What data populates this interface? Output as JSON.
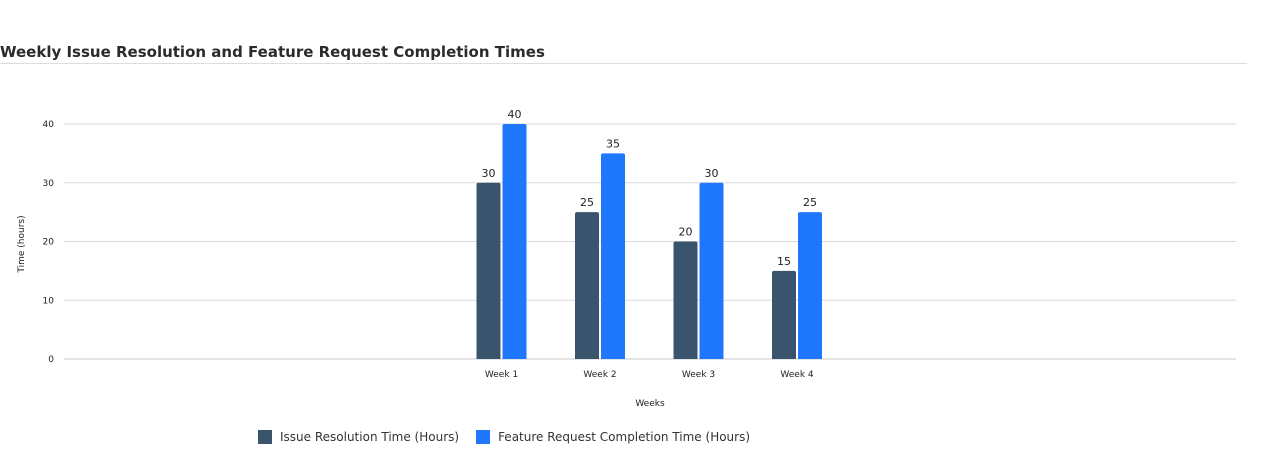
{
  "chart_data": {
    "type": "bar",
    "title": "Weekly Issue Resolution and Feature Request Completion Times",
    "xlabel": "Weeks",
    "ylabel": "Time (hours)",
    "categories": [
      "Week 1",
      "Week 2",
      "Week 3",
      "Week 4"
    ],
    "series": [
      {
        "name": "Issue Resolution Time (Hours)",
        "values": [
          30,
          25,
          20,
          15
        ],
        "color": "#3a546e"
      },
      {
        "name": "Feature Request Completion Time (Hours)",
        "values": [
          40,
          35,
          30,
          25
        ],
        "color": "#1f77fe"
      }
    ],
    "ylim": [
      0,
      40
    ],
    "yticks": [
      0,
      10,
      20,
      30,
      40
    ],
    "grid": true,
    "data_labels": true,
    "legend_position": "bottom"
  }
}
